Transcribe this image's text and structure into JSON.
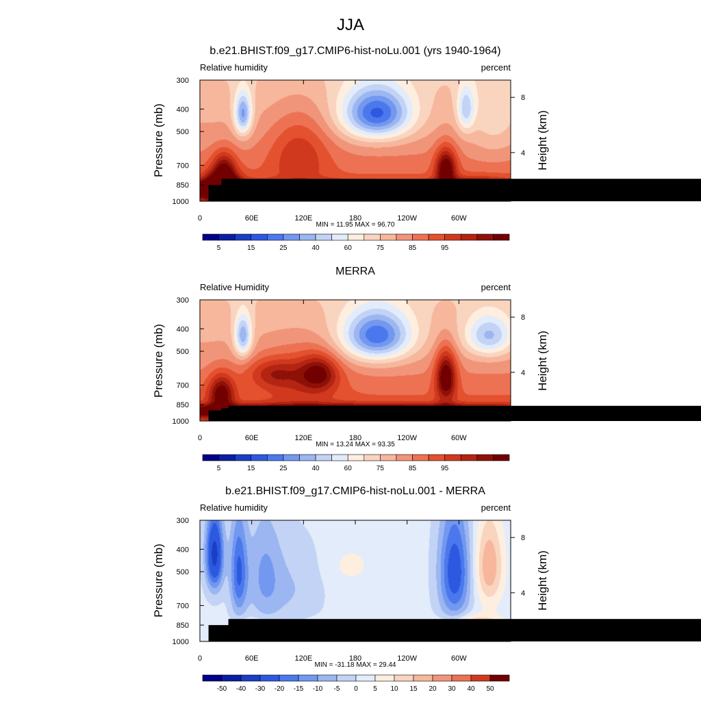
{
  "figure": {
    "title": "JJA"
  },
  "chart_data": [
    {
      "type": "heatmap",
      "title": "b.e21.BHIST.f09_g17.CMIP6-hist-noLu.001 (yrs 1940-1964)",
      "left_string": "Relative humidity",
      "right_string": "percent",
      "ylabel": "Pressure (mb)",
      "ylabel_right": "Height (km)",
      "x_ticks": [
        "0",
        "60E",
        "120E",
        "180",
        "120W",
        "60W"
      ],
      "x_tick_values": [
        0,
        60,
        120,
        180,
        240,
        300
      ],
      "xlim": [
        0,
        360
      ],
      "y_ticks": [
        "300",
        "400",
        "500",
        "700",
        "850",
        "1000"
      ],
      "y_tick_values": [
        300,
        400,
        500,
        700,
        850,
        1000
      ],
      "ylim": [
        1000,
        300
      ],
      "y_scale": "log",
      "right_ticks": [
        "4",
        "8"
      ],
      "right_tick_values": [
        4,
        8
      ],
      "stats": "MIN =  11.95  MAX =  96.70",
      "min": 11.95,
      "max": 96.7,
      "colorbar": {
        "levels": [
          5,
          10,
          15,
          20,
          25,
          30,
          35,
          40,
          45,
          50,
          55,
          60,
          65,
          70,
          75,
          80,
          85,
          90,
          95
        ],
        "labels": [
          "5",
          "15",
          "25",
          "40",
          "60",
          "75",
          "85",
          "95"
        ],
        "label_slots": [
          1,
          3,
          5,
          7,
          9,
          11,
          13,
          15
        ]
      },
      "terrain": [
        [
          10,
          850
        ],
        [
          33,
          850
        ],
        [
          25,
          800
        ],
        [
          95,
          850
        ],
        [
          105,
          850
        ]
      ]
    },
    {
      "type": "heatmap",
      "title": "MERRA",
      "left_string": "Relative Humidity",
      "right_string": "percent",
      "ylabel": "Pressure (mb)",
      "ylabel_right": "Height (km)",
      "x_ticks": [
        "0",
        "60E",
        "120E",
        "180",
        "120W",
        "60W"
      ],
      "x_tick_values": [
        0,
        60,
        120,
        180,
        240,
        300
      ],
      "xlim": [
        0,
        360
      ],
      "y_ticks": [
        "300",
        "400",
        "500",
        "700",
        "850",
        "1000"
      ],
      "y_tick_values": [
        300,
        400,
        500,
        700,
        850,
        1000
      ],
      "ylim": [
        1000,
        300
      ],
      "y_scale": "log",
      "right_ticks": [
        "4",
        "8"
      ],
      "right_tick_values": [
        4,
        8
      ],
      "stats": "MIN =  13.24  MAX =  93.35",
      "min": 13.24,
      "max": 93.35,
      "colorbar": {
        "levels": [
          5,
          10,
          15,
          20,
          25,
          30,
          35,
          40,
          45,
          50,
          55,
          60,
          65,
          70,
          75,
          80,
          85,
          90,
          95
        ],
        "labels": [
          "5",
          "15",
          "25",
          "40",
          "60",
          "75",
          "85",
          "95"
        ],
        "label_slots": [
          1,
          3,
          5,
          7,
          9,
          11,
          13,
          15
        ]
      },
      "terrain": [
        [
          10,
          900
        ],
        [
          25,
          880
        ],
        [
          33,
          860
        ]
      ]
    },
    {
      "type": "heatmap",
      "title": "b.e21.BHIST.f09_g17.CMIP6-hist-noLu.001 - MERRA",
      "left_string": "Relative humidity",
      "right_string": "percent",
      "ylabel": "Pressure (mb)",
      "ylabel_right": "Height (km)",
      "x_ticks": [
        "0",
        "60E",
        "120E",
        "180",
        "120W",
        "60W"
      ],
      "x_tick_values": [
        0,
        60,
        120,
        180,
        240,
        300
      ],
      "xlim": [
        0,
        360
      ],
      "y_ticks": [
        "300",
        "400",
        "500",
        "700",
        "850",
        "1000"
      ],
      "y_tick_values": [
        300,
        400,
        500,
        700,
        850,
        1000
      ],
      "ylim": [
        1000,
        300
      ],
      "y_scale": "log",
      "right_ticks": [
        "4",
        "8"
      ],
      "right_tick_values": [
        4,
        8
      ],
      "stats": "MIN = -31.18  MAX =  29.44",
      "min": -31.18,
      "max": 29.44,
      "colorbar": {
        "levels": [
          -50,
          -40,
          -30,
          -20,
          -15,
          -10,
          -5,
          0,
          5,
          10,
          15,
          20,
          30,
          40,
          50
        ],
        "labels": [
          "-50",
          "-40",
          "-30",
          "-20",
          "-15",
          "-10",
          "-5",
          "0",
          "5",
          "10",
          "15",
          "20",
          "30",
          "40",
          "50"
        ],
        "label_slots": [
          1,
          2,
          3,
          4,
          5,
          6,
          7,
          8,
          9,
          10,
          11,
          12,
          13,
          14,
          15
        ]
      },
      "terrain": [
        [
          10,
          850
        ],
        [
          33,
          800
        ],
        [
          95,
          850
        ],
        [
          105,
          850
        ]
      ]
    }
  ],
  "colors": {
    "rh_scale": [
      "#00008b",
      "#0a1ea3",
      "#1a3ec4",
      "#2d59e0",
      "#4b78ec",
      "#7298ef",
      "#9bb6f1",
      "#c2d3f5",
      "#e3ecfa",
      "#fdeee0",
      "#f9d4bf",
      "#f6b79c",
      "#f1957a",
      "#ec7253",
      "#e3512f",
      "#d0391d",
      "#b32412",
      "#8e1108",
      "#720000"
    ],
    "diff_scale": [
      "#00008b",
      "#0a1ea3",
      "#1a3ec4",
      "#2d59e0",
      "#4b78ec",
      "#7298ef",
      "#9bb6f1",
      "#c2d3f5",
      "#e3ecfa",
      "#fdeee0",
      "#f9d4bf",
      "#f6b79c",
      "#f1957a",
      "#ec7253",
      "#d0391d",
      "#720000"
    ],
    "terrain": "#000000"
  }
}
